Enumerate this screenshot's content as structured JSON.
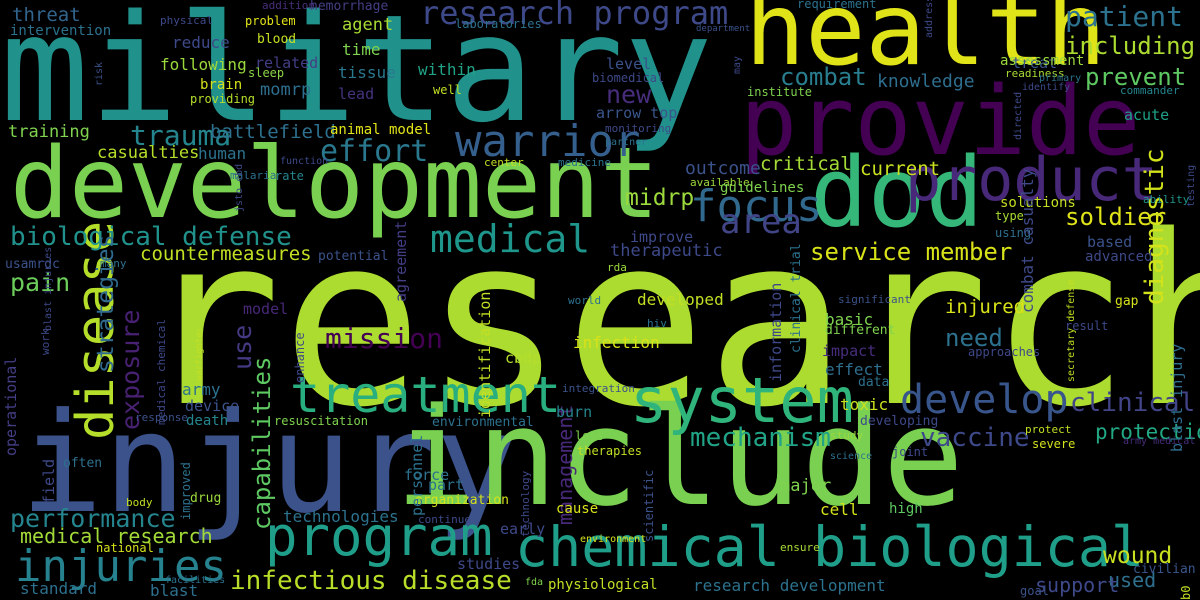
{
  "words": [
    {
      "text": "research",
      "color": "#addc30"
    },
    {
      "text": "military",
      "color": "#21918c"
    },
    {
      "text": "injury",
      "color": "#3b528b"
    },
    {
      "text": "include",
      "color": "#7ad151"
    },
    {
      "text": "development",
      "color": "#7ad151"
    },
    {
      "text": "health",
      "color": "#dfe318"
    },
    {
      "text": "provide",
      "color": "#440154"
    },
    {
      "text": "dod",
      "color": "#35b779"
    },
    {
      "text": "product",
      "color": "#482878"
    },
    {
      "text": "system",
      "color": "#2fb47c"
    },
    {
      "text": "treatment",
      "color": "#29af7f"
    },
    {
      "text": "program",
      "color": "#1f9e89"
    },
    {
      "text": "chemical biological",
      "color": "#1f9e89"
    },
    {
      "text": "medical",
      "color": "#1f968b"
    },
    {
      "text": "warrior",
      "color": "#355f8d"
    },
    {
      "text": "disease",
      "color": "#b5de2b"
    },
    {
      "text": "develop",
      "color": "#39568c"
    },
    {
      "text": "focus",
      "color": "#31688e"
    },
    {
      "text": "area",
      "color": "#414487"
    },
    {
      "text": "injuries",
      "color": "#26828e"
    },
    {
      "text": "infectious disease",
      "color": "#b8de29"
    },
    {
      "text": "research program",
      "color": "#3e4989"
    },
    {
      "text": "patient",
      "color": "#2c728e"
    },
    {
      "text": "including",
      "color": "#addc30"
    },
    {
      "text": "prevent",
      "color": "#5ec962"
    },
    {
      "text": "combat",
      "color": "#287d8e"
    },
    {
      "text": "trauma",
      "color": "#25858e"
    },
    {
      "text": "effort",
      "color": "#2a788e"
    },
    {
      "text": "biological defense",
      "color": "#21918c"
    },
    {
      "text": "mission",
      "color": "#440154"
    },
    {
      "text": "mechanism",
      "color": "#20a386"
    },
    {
      "text": "vaccine",
      "color": "#3e4989"
    },
    {
      "text": "clinical",
      "color": "#414487"
    },
    {
      "text": "soldier",
      "color": "#dfe318"
    },
    {
      "text": "service member",
      "color": "#d8e219"
    },
    {
      "text": "diagnostic",
      "color": "#d2e21b"
    },
    {
      "text": "exposure",
      "color": "#482173"
    },
    {
      "text": "strategies",
      "color": "#306a8e"
    },
    {
      "text": "pain",
      "color": "#6ccd5a"
    },
    {
      "text": "use",
      "color": "#443983"
    },
    {
      "text": "capabilities",
      "color": "#5ec962"
    },
    {
      "text": "countermeasures",
      "color": "#c2df23"
    },
    {
      "text": "performance",
      "color": "#25858e"
    },
    {
      "text": "medical research",
      "color": "#a2da37"
    },
    {
      "text": "wound",
      "color": "#c8e020"
    },
    {
      "text": "used",
      "color": "#2e6f8e"
    },
    {
      "text": "support",
      "color": "#3e4989"
    },
    {
      "text": "protection",
      "color": "#22a884"
    },
    {
      "text": "management",
      "color": "#482878"
    },
    {
      "text": "need",
      "color": "#2c728e"
    },
    {
      "text": "injured",
      "color": "#d8e219"
    },
    {
      "text": "new",
      "color": "#472d7b"
    },
    {
      "text": "outcome",
      "color": "#3b528b"
    },
    {
      "text": "critical",
      "color": "#a5db36"
    },
    {
      "text": "current",
      "color": "#cae11f"
    },
    {
      "text": "knowledge",
      "color": "#2e6e8e"
    },
    {
      "text": "threat",
      "color": "#32658e"
    },
    {
      "text": "casualties",
      "color": "#b5de2b"
    },
    {
      "text": "battlefield",
      "color": "#2d708e"
    },
    {
      "text": "human",
      "color": "#2c728e"
    },
    {
      "text": "training",
      "color": "#7fd34e"
    },
    {
      "text": "midrp",
      "color": "#9bd93c"
    },
    {
      "text": "therapeutic",
      "color": "#3e4989"
    },
    {
      "text": "agent",
      "color": "#a8db34"
    },
    {
      "text": "time",
      "color": "#7fd34e"
    },
    {
      "text": "tissue",
      "color": "#2a788e"
    },
    {
      "text": "lead",
      "color": "#46337e"
    },
    {
      "text": "momrp",
      "color": "#2e6e8e"
    },
    {
      "text": "brain",
      "color": "#d5e21a"
    },
    {
      "text": "reduce",
      "color": "#3e4989"
    },
    {
      "text": "following",
      "color": "#9bd93c"
    },
    {
      "text": "within",
      "color": "#20a386"
    },
    {
      "text": "related",
      "color": "#433e85"
    },
    {
      "text": "blood",
      "color": "#c5e021"
    },
    {
      "text": "problem",
      "color": "#e2e418"
    },
    {
      "text": "sleep",
      "color": "#8bd646"
    },
    {
      "text": "well",
      "color": "#c2df23"
    },
    {
      "text": "providing",
      "color": "#b5de2b"
    },
    {
      "text": "physical",
      "color": "#3e4989"
    },
    {
      "text": "intervention",
      "color": "#2c728e"
    },
    {
      "text": "addition",
      "color": "#472d7b"
    },
    {
      "text": "hemorrhage",
      "color": "#433e85"
    },
    {
      "text": "laboratories",
      "color": "#2d708e"
    },
    {
      "text": "requirement",
      "color": "#2c728e"
    },
    {
      "text": "level",
      "color": "#3b528b"
    },
    {
      "text": "arrow top",
      "color": "#39568c"
    },
    {
      "text": "monitoring",
      "color": "#3e4989"
    },
    {
      "text": "partner",
      "color": "#2d708e"
    },
    {
      "text": "biomedical",
      "color": "#3e4989"
    },
    {
      "text": "institute",
      "color": "#7fd34e"
    },
    {
      "text": "department",
      "color": "#3b528b"
    },
    {
      "text": "animal model",
      "color": "#e2e418"
    },
    {
      "text": "malaria",
      "color": "#2d708e"
    },
    {
      "text": "function",
      "color": "#3e4989"
    },
    {
      "text": "rate",
      "color": "#25858e"
    },
    {
      "text": "center",
      "color": "#c2df23"
    },
    {
      "text": "medicine",
      "color": "#2c728e"
    },
    {
      "text": "available",
      "color": "#9bd93c"
    },
    {
      "text": "guidelines",
      "color": "#7fd34e"
    },
    {
      "text": "solutions",
      "color": "#c2df23"
    },
    {
      "text": "ability",
      "color": "#1f968b"
    },
    {
      "text": "type",
      "color": "#a8db34"
    },
    {
      "text": "using",
      "color": "#2e6e8e"
    },
    {
      "text": "treat",
      "color": "#39568c"
    },
    {
      "text": "assessment",
      "color": "#9bd93c"
    },
    {
      "text": "readiness",
      "color": "#a8db34"
    },
    {
      "text": "primary",
      "color": "#2c728e"
    },
    {
      "text": "identify",
      "color": "#3e4989"
    },
    {
      "text": "commander",
      "color": "#25858e"
    },
    {
      "text": "acute",
      "color": "#1fa187"
    },
    {
      "text": "based",
      "color": "#3b528b"
    },
    {
      "text": "advanced",
      "color": "#3e4989"
    },
    {
      "text": "gap",
      "color": "#d5e21a"
    },
    {
      "text": "result",
      "color": "#3e4989"
    },
    {
      "text": "significant",
      "color": "#3b528b"
    },
    {
      "text": "different",
      "color": "#7fd34e"
    },
    {
      "text": "basic",
      "color": "#7fd34e"
    },
    {
      "text": "impact",
      "color": "#472d7b"
    },
    {
      "text": "effect",
      "color": "#2e6e8e"
    },
    {
      "text": "data",
      "color": "#2d708e"
    },
    {
      "text": "toxic",
      "color": "#cae11f"
    },
    {
      "text": "developing",
      "color": "#3e4989"
    },
    {
      "text": "study",
      "color": "#9bd93c"
    },
    {
      "text": "science",
      "color": "#2d708e"
    },
    {
      "text": "joint",
      "color": "#3e4989"
    },
    {
      "text": "protect",
      "color": "#c2df23"
    },
    {
      "text": "severe",
      "color": "#d2e21b"
    },
    {
      "text": "army medical",
      "color": "#472d7b"
    },
    {
      "text": "civilian",
      "color": "#39568c"
    },
    {
      "text": "developed",
      "color": "#c2df23"
    },
    {
      "text": "infection",
      "color": "#d8e219"
    },
    {
      "text": "cbdp",
      "color": "#b5de2b"
    },
    {
      "text": "burn",
      "color": "#25858e"
    },
    {
      "text": "loss",
      "color": "#7fd34e"
    },
    {
      "text": "therapies",
      "color": "#c2df23"
    },
    {
      "text": "major",
      "color": "#7fd34e"
    },
    {
      "text": "cell",
      "color": "#d5e21a"
    },
    {
      "text": "high",
      "color": "#5ec962"
    },
    {
      "text": "cause",
      "color": "#d8e219"
    },
    {
      "text": "early",
      "color": "#3e4989"
    },
    {
      "text": "environment",
      "color": "#d5e21a"
    },
    {
      "text": "ensure",
      "color": "#a8db34"
    },
    {
      "text": "fda",
      "color": "#7fd34e"
    },
    {
      "text": "physiological",
      "color": "#c2df23"
    },
    {
      "text": "research development",
      "color": "#2c728e"
    },
    {
      "text": "goal",
      "color": "#3b528b"
    },
    {
      "text": "organization",
      "color": "#d5e21a"
    },
    {
      "text": "force",
      "color": "#2c728e"
    },
    {
      "text": "part",
      "color": "#2c728e"
    },
    {
      "text": "technologies",
      "color": "#2c728e"
    },
    {
      "text": "continue",
      "color": "#3e4989"
    },
    {
      "text": "studies",
      "color": "#3e4989"
    },
    {
      "text": "environmental",
      "color": "#2c728e"
    },
    {
      "text": "resuscitation",
      "color": "#7fd34e"
    },
    {
      "text": "model",
      "color": "#482878"
    },
    {
      "text": "army",
      "color": "#2c728e"
    },
    {
      "text": "device",
      "color": "#3b528b"
    },
    {
      "text": "death",
      "color": "#25858e"
    },
    {
      "text": "drug",
      "color": "#9bd93c"
    },
    {
      "text": "body",
      "color": "#c2df23"
    },
    {
      "text": "blast",
      "color": "#2d708e"
    },
    {
      "text": "national",
      "color": "#d5e21a"
    },
    {
      "text": "standard",
      "color": "#2d708e"
    },
    {
      "text": "facilities",
      "color": "#2d708e"
    },
    {
      "text": "response",
      "color": "#3b528b"
    },
    {
      "text": "often",
      "color": "#2d708e"
    },
    {
      "text": "potential",
      "color": "#3b528b"
    },
    {
      "text": "usamrdc",
      "color": "#3b528b"
    },
    {
      "text": "many",
      "color": "#2d708e"
    },
    {
      "text": "world",
      "color": "#2c728e"
    },
    {
      "text": "hiv",
      "color": "#2c728e"
    },
    {
      "text": "approaches",
      "color": "#3e4989"
    },
    {
      "text": "integration",
      "color": "#3b528b"
    },
    {
      "text": "rda",
      "color": "#9bd93c"
    },
    {
      "text": "improve",
      "color": "#3e4989"
    },
    {
      "text": "information",
      "color": "#3e4989"
    },
    {
      "text": "agreement",
      "color": "#433e85"
    },
    {
      "text": "personnel",
      "color": "#2c728e"
    },
    {
      "text": "identification",
      "color": "#c2df23"
    },
    {
      "text": "combat casualty",
      "color": "#3e4989"
    },
    {
      "text": "blast injury",
      "color": "#2e6e8e"
    },
    {
      "text": "clinical trial",
      "color": "#2c728e"
    },
    {
      "text": "operational",
      "color": "#433e85"
    },
    {
      "text": "field",
      "color": "#3e4989"
    },
    {
      "text": "work",
      "color": "#3e4989"
    },
    {
      "text": "blast injuries",
      "color": "#3e4989"
    },
    {
      "text": "medical chemical",
      "color": "#3e4989"
    },
    {
      "text": "enhance",
      "color": "#3e4989"
    },
    {
      "text": "warfighter",
      "color": "#c2df23"
    },
    {
      "text": "improved",
      "color": "#2d708e"
    },
    {
      "text": "technology",
      "color": "#3e4989"
    },
    {
      "text": "scientific",
      "color": "#3b528b"
    },
    {
      "text": "risk",
      "color": "#3b528b"
    },
    {
      "text": "jsto cbd",
      "color": "#3e4989"
    },
    {
      "text": "may",
      "color": "#3e4989"
    },
    {
      "text": "address",
      "color": "#3e4989"
    },
    {
      "text": "directed",
      "color": "#3e4989"
    },
    {
      "text": "testing",
      "color": "#3e4989"
    },
    {
      "text": "secretary defense",
      "color": "#c2df23"
    },
    {
      "text": "b0",
      "color": "#c2df23"
    }
  ]
}
